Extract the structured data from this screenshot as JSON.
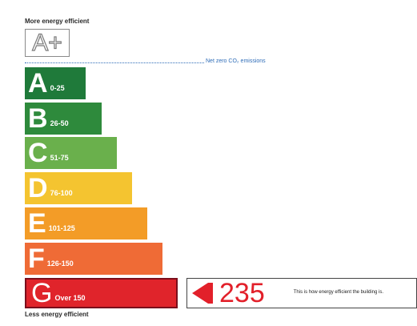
{
  "top_caption": "More energy efficient",
  "bottom_caption": "Less energy efficient",
  "aplus_label": "A+",
  "net_zero_label": "Net zero CO₂ emissions",
  "bands": [
    {
      "letter": "A",
      "range": "0-25",
      "color": "#1f7a3a"
    },
    {
      "letter": "B",
      "range": "26-50",
      "color": "#2e8a3c"
    },
    {
      "letter": "C",
      "range": "51-75",
      "color": "#6ab04c"
    },
    {
      "letter": "D",
      "range": "76-100",
      "color": "#f4c430"
    },
    {
      "letter": "E",
      "range": "101-125",
      "color": "#f39c27"
    },
    {
      "letter": "F",
      "range": "126-150",
      "color": "#ef6b36"
    },
    {
      "letter": "G",
      "range": "Over 150",
      "color": "#e0242b"
    }
  ],
  "rating": {
    "score": "235",
    "note": "This is how energy efficient the building is.",
    "color": "#e2202a"
  }
}
